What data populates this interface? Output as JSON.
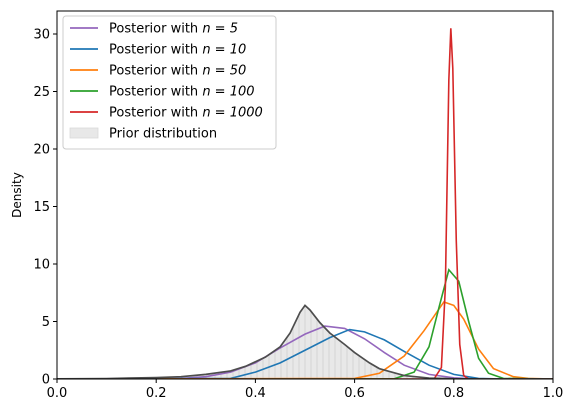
{
  "chart_data": {
    "type": "area",
    "xlabel": "",
    "ylabel": "Density",
    "xlim": [
      0.0,
      1.0
    ],
    "ylim": [
      0,
      32
    ],
    "xticks": [
      "0.0",
      "0.2",
      "0.4",
      "0.6",
      "0.8",
      "1.0"
    ],
    "yticks": [
      "0",
      "5",
      "10",
      "15",
      "20",
      "25",
      "30"
    ],
    "grid": false,
    "legend_position": "top-left",
    "prior": {
      "name": "Prior distribution",
      "color": "#4d4d4d",
      "fill": "#e8e8e8",
      "hatch": "vertical",
      "points": [
        [
          0.0,
          0.01
        ],
        [
          0.1,
          0.04
        ],
        [
          0.2,
          0.12
        ],
        [
          0.25,
          0.2
        ],
        [
          0.3,
          0.4
        ],
        [
          0.35,
          0.7
        ],
        [
          0.38,
          1.1
        ],
        [
          0.42,
          1.9
        ],
        [
          0.45,
          2.8
        ],
        [
          0.47,
          4.0
        ],
        [
          0.49,
          5.8
        ],
        [
          0.5,
          6.4
        ],
        [
          0.51,
          6.0
        ],
        [
          0.53,
          4.9
        ],
        [
          0.55,
          4.0
        ],
        [
          0.58,
          3.0
        ],
        [
          0.6,
          2.3
        ],
        [
          0.63,
          1.4
        ],
        [
          0.65,
          0.9
        ],
        [
          0.7,
          0.3
        ],
        [
          0.75,
          0.08
        ],
        [
          0.8,
          0.02
        ],
        [
          0.9,
          0.0
        ],
        [
          1.0,
          0.0
        ]
      ]
    },
    "series": [
      {
        "name": "Posterior with $n = 5$",
        "label_prefix": "Posterior with ",
        "label_math": "n = 5",
        "color": "#9467bd",
        "points": [
          [
            0.0,
            0.0
          ],
          [
            0.25,
            0.05
          ],
          [
            0.3,
            0.2
          ],
          [
            0.35,
            0.6
          ],
          [
            0.4,
            1.4
          ],
          [
            0.45,
            2.7
          ],
          [
            0.5,
            3.9
          ],
          [
            0.54,
            4.6
          ],
          [
            0.58,
            4.4
          ],
          [
            0.62,
            3.5
          ],
          [
            0.66,
            2.3
          ],
          [
            0.7,
            1.2
          ],
          [
            0.75,
            0.4
          ],
          [
            0.8,
            0.1
          ],
          [
            0.85,
            0.0
          ],
          [
            1.0,
            0.0
          ]
        ]
      },
      {
        "name": "Posterior with $n = 10$",
        "label_prefix": "Posterior with ",
        "label_math": "n = 10",
        "color": "#1f77b4",
        "points": [
          [
            0.0,
            0.0
          ],
          [
            0.35,
            0.05
          ],
          [
            0.4,
            0.6
          ],
          [
            0.45,
            1.4
          ],
          [
            0.5,
            2.5
          ],
          [
            0.55,
            3.6
          ],
          [
            0.59,
            4.3
          ],
          [
            0.62,
            4.1
          ],
          [
            0.66,
            3.4
          ],
          [
            0.7,
            2.4
          ],
          [
            0.75,
            1.2
          ],
          [
            0.8,
            0.4
          ],
          [
            0.85,
            0.05
          ],
          [
            0.9,
            0.0
          ],
          [
            1.0,
            0.0
          ]
        ]
      },
      {
        "name": "Posterior with $n = 50$",
        "label_prefix": "Posterior with ",
        "label_math": "n = 50",
        "color": "#ff7f0e",
        "points": [
          [
            0.0,
            0.0
          ],
          [
            0.6,
            0.05
          ],
          [
            0.65,
            0.5
          ],
          [
            0.7,
            2.0
          ],
          [
            0.74,
            4.2
          ],
          [
            0.78,
            6.7
          ],
          [
            0.8,
            6.4
          ],
          [
            0.82,
            5.2
          ],
          [
            0.85,
            2.6
          ],
          [
            0.88,
            0.9
          ],
          [
            0.92,
            0.2
          ],
          [
            0.95,
            0.05
          ],
          [
            1.0,
            0.0
          ]
        ]
      },
      {
        "name": "Posterior with $n = 100$",
        "label_prefix": "Posterior with ",
        "label_math": "n = 100",
        "color": "#2ca02c",
        "points": [
          [
            0.0,
            0.0
          ],
          [
            0.68,
            0.02
          ],
          [
            0.72,
            0.6
          ],
          [
            0.75,
            2.8
          ],
          [
            0.77,
            6.2
          ],
          [
            0.79,
            9.5
          ],
          [
            0.81,
            8.5
          ],
          [
            0.83,
            5.0
          ],
          [
            0.85,
            1.8
          ],
          [
            0.87,
            0.5
          ],
          [
            0.9,
            0.05
          ],
          [
            1.0,
            0.0
          ]
        ]
      },
      {
        "name": "Posterior with $n = 1000$",
        "label_prefix": "Posterior with ",
        "label_math": "n = 1000",
        "color": "#d62728",
        "points": [
          [
            0.0,
            0.0
          ],
          [
            0.76,
            0.0
          ],
          [
            0.775,
            1.0
          ],
          [
            0.783,
            8.0
          ],
          [
            0.79,
            26.0
          ],
          [
            0.794,
            30.5
          ],
          [
            0.798,
            27.0
          ],
          [
            0.805,
            12.0
          ],
          [
            0.812,
            3.0
          ],
          [
            0.82,
            0.3
          ],
          [
            0.83,
            0.0
          ],
          [
            1.0,
            0.0
          ]
        ]
      }
    ]
  }
}
